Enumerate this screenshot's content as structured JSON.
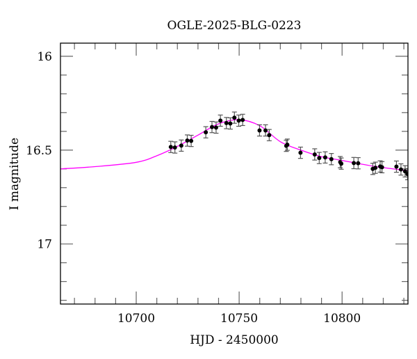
{
  "chart_data": {
    "type": "scatter",
    "title": "OGLE-2025-BLG-0223",
    "xlabel": "HJD - 2450000",
    "ylabel": "I magnitude",
    "xlim": [
      10663.2,
      10832
    ],
    "ylim": [
      15.93,
      17.32
    ],
    "y_inverted": true,
    "x_ticks": [
      10700,
      10750,
      10800
    ],
    "x_tick_labels": [
      "10700",
      "10750",
      "10800"
    ],
    "x_minor_step": 10,
    "y_ticks": [
      16,
      16.5,
      17
    ],
    "y_tick_labels": [
      "16",
      "16.5",
      "17"
    ],
    "y_minor_step": 0.1,
    "grid": false,
    "colors": {
      "points": "#000000",
      "errorbars": "#555555",
      "model": "#ff00ff"
    },
    "series": [
      {
        "type": "scatter-errorbar",
        "x": [
          10716.8,
          10718.8,
          10721.9,
          10724.8,
          10726.7,
          10733.8,
          10736.8,
          10738.8,
          10740.9,
          10743.8,
          10745.7,
          10747.7,
          10749.8,
          10751.7,
          10759.9,
          10762.8,
          10764.6,
          10772.9,
          10773.4,
          10779.8,
          10786.7,
          10788.9,
          10791.8,
          10794.8,
          10799.1,
          10799.6,
          10805.7,
          10807.8,
          10814.9,
          10816.2,
          10818.5,
          10819.4,
          10826.4,
          10828.6,
          10830.6,
          10831.8
        ],
        "y": [
          16.483,
          16.486,
          16.476,
          16.449,
          16.451,
          16.405,
          16.377,
          16.38,
          16.343,
          16.356,
          16.358,
          16.327,
          16.343,
          16.339,
          16.395,
          16.395,
          16.42,
          16.477,
          16.471,
          16.514,
          16.523,
          16.542,
          16.539,
          16.548,
          16.564,
          16.572,
          16.569,
          16.57,
          16.6,
          16.594,
          16.587,
          16.591,
          16.588,
          16.603,
          16.613,
          16.628
        ],
        "yerr": 0.03
      },
      {
        "type": "line",
        "x": [
          10663.2,
          10680,
          10700,
          10710,
          10720,
          10730,
          10740,
          10750,
          10760,
          10770,
          10780,
          10790,
          10800,
          10815,
          10832
        ],
        "y": [
          16.6,
          16.588,
          16.565,
          16.53,
          16.48,
          16.42,
          16.36,
          16.338,
          16.37,
          16.455,
          16.5,
          16.535,
          16.555,
          16.585,
          16.61
        ]
      }
    ]
  }
}
